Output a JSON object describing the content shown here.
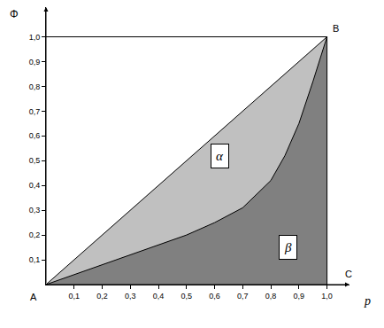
{
  "chart_data": {
    "type": "area",
    "x_label": "p",
    "y_label": "Φ",
    "xlim": [
      0,
      1.08
    ],
    "ylim": [
      0,
      1.12
    ],
    "xticks": [
      {
        "value": 0.1,
        "label": "0,1"
      },
      {
        "value": 0.2,
        "label": "0,2"
      },
      {
        "value": 0.3,
        "label": "0,3"
      },
      {
        "value": 0.4,
        "label": "0,4"
      },
      {
        "value": 0.5,
        "label": "0,5"
      },
      {
        "value": 0.6,
        "label": "0,6"
      },
      {
        "value": 0.7,
        "label": "0,7"
      },
      {
        "value": 0.8,
        "label": "0,8"
      },
      {
        "value": 0.9,
        "label": "0,9"
      },
      {
        "value": 1.0,
        "label": "1,0"
      }
    ],
    "yticks": [
      {
        "value": 0.1,
        "label": "0,1"
      },
      {
        "value": 0.2,
        "label": "0,2"
      },
      {
        "value": 0.3,
        "label": "0,3"
      },
      {
        "value": 0.4,
        "label": "0,4"
      },
      {
        "value": 0.5,
        "label": "0,5"
      },
      {
        "value": 0.6,
        "label": "0,6"
      },
      {
        "value": 0.7,
        "label": "0,7"
      },
      {
        "value": 0.8,
        "label": "0,8"
      },
      {
        "value": 0.9,
        "label": "0,9"
      },
      {
        "value": 1.0,
        "label": "1,0"
      }
    ],
    "grid": false,
    "series": [
      {
        "x": [
          0,
          1
        ],
        "values": [
          0,
          1
        ],
        "color": "#c0c0c0"
      },
      {
        "x": [
          0,
          0.1,
          0.2,
          0.3,
          0.4,
          0.5,
          0.6,
          0.7,
          0.8,
          0.85,
          0.9,
          0.95,
          1.0
        ],
        "values": [
          0,
          0.04,
          0.08,
          0.12,
          0.16,
          0.2,
          0.25,
          0.31,
          0.42,
          0.52,
          0.65,
          0.82,
          1.0
        ],
        "color": "#808080"
      }
    ],
    "points": [
      {
        "label": "A",
        "x": 0,
        "y": 0
      },
      {
        "label": "B",
        "x": 1,
        "y": 1
      },
      {
        "label": "C",
        "x": 1,
        "y": 0
      }
    ],
    "annotations": [
      {
        "text": "α",
        "x": 0.62,
        "y": 0.52
      },
      {
        "text": "β",
        "x": 0.86,
        "y": 0.15
      }
    ]
  }
}
